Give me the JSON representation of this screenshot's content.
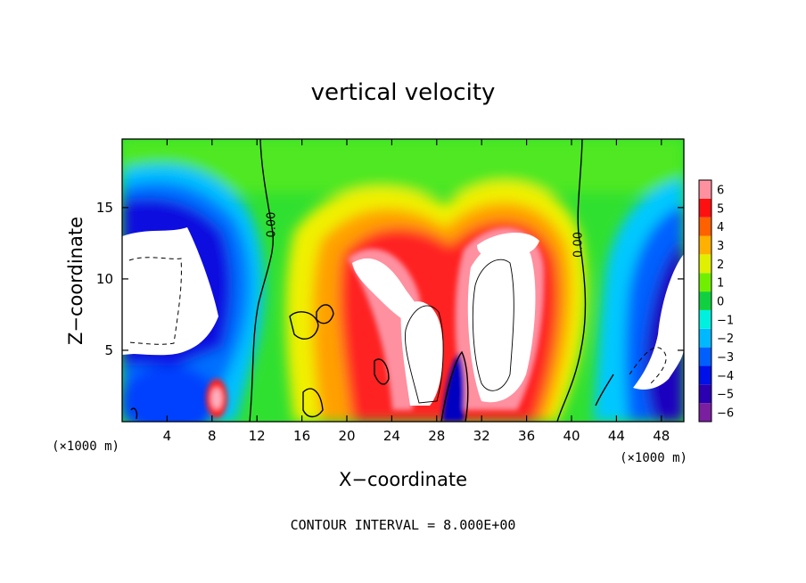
{
  "chart_data": {
    "type": "heatmap",
    "title": "vertical velocity",
    "xlabel": "X−coordinate",
    "ylabel": "Z−coordinate",
    "x_unit": "(×1000 m)",
    "z_unit": "(×1000 m)",
    "xlim": [
      0,
      50
    ],
    "ylim": [
      0,
      19.8
    ],
    "x_ticks": [
      4,
      8,
      12,
      16,
      20,
      24,
      28,
      32,
      36,
      40,
      44,
      48
    ],
    "x_tick_labels": [
      "4",
      "8",
      "12",
      "16",
      "20",
      "24",
      "28",
      "32",
      "36",
      "40",
      "44",
      "48"
    ],
    "y_ticks": [
      5,
      10,
      15
    ],
    "y_tick_labels": [
      "5",
      "10",
      "15"
    ],
    "colorbar": {
      "levels": [
        -6,
        -5,
        -4,
        -3,
        -2,
        -1,
        0,
        1,
        2,
        3,
        4,
        5,
        6
      ],
      "labels": [
        "−6",
        "−5",
        "−4",
        "−3",
        "−2",
        "−1",
        "0",
        "1",
        "2",
        "3",
        "4",
        "5",
        "6"
      ],
      "colors": [
        "#7a1fa0",
        "#2a00b0",
        "#0010e8",
        "#0060ff",
        "#00b8ff",
        "#00f0e0",
        "#10d040",
        "#70f000",
        "#e0f000",
        "#ffb000",
        "#ff6000",
        "#ff1010",
        "#ff90a0"
      ]
    },
    "contour_labels": [
      {
        "text": "0.00",
        "x": 13.3,
        "z": 13.8
      },
      {
        "text": "0.00",
        "x": 40.6,
        "z": 12.4
      }
    ],
    "footer": "CONTOUR INTERVAL = 8.000E+00",
    "grid": false,
    "legend": "colorbar right"
  }
}
